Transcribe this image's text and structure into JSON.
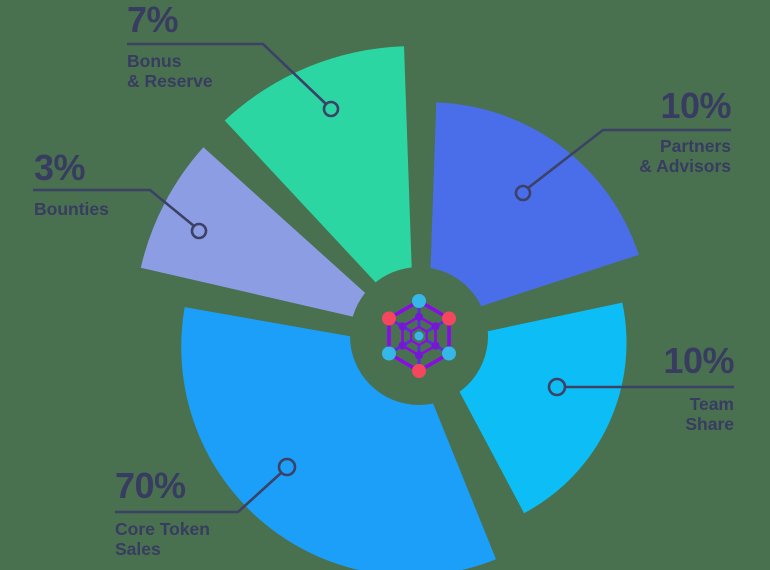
{
  "colors": {
    "background": "#49714F",
    "text": "#383C60",
    "line": "#3C4166"
  },
  "logo": {
    "name": "hexagon-network-logo",
    "edge_color": "#8A0BE8",
    "spoke_color": "#5D2BE2",
    "node_cyan": "#35B7E8",
    "node_red": "#F4475D",
    "node_purple": "#7517D6"
  },
  "chart_data": {
    "type": "pie",
    "unit": "%",
    "total": 100,
    "legend_position": "around-slices",
    "slices": [
      {
        "key": "bonus",
        "label": "Bonus & Reserve",
        "label_lines": [
          "Bonus",
          "& Reserve"
        ],
        "value": 7,
        "pct_text": "7%",
        "color": "#2CD6A3"
      },
      {
        "key": "partners",
        "label": "Partners & Advisors",
        "label_lines": [
          "Partners",
          "& Advisors"
        ],
        "value": 10,
        "pct_text": "10%",
        "color": "#4A6EE9"
      },
      {
        "key": "team",
        "label": "Team Share",
        "label_lines": [
          "Team",
          "Share"
        ],
        "value": 10,
        "pct_text": "10%",
        "color": "#0CBEF5"
      },
      {
        "key": "core",
        "label": "Core Token Sales",
        "label_lines": [
          "Core Token",
          "Sales"
        ],
        "value": 70,
        "pct_text": "70%",
        "color": "#1B9FF8"
      },
      {
        "key": "bounties",
        "label": "Bounties",
        "label_lines": [
          "Bounties"
        ],
        "value": 3,
        "pct_text": "3%",
        "color": "#8C9DE3"
      }
    ]
  }
}
